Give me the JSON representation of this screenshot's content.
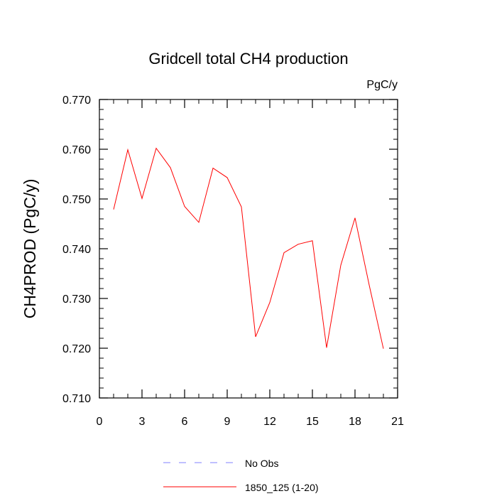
{
  "chart_data": {
    "type": "line",
    "title": "Gridcell total CH4 production",
    "units_label": "PgC/y",
    "xlabel": "",
    "ylabel": "CH4PROD  (PgC/y)",
    "xlim": [
      0,
      21
    ],
    "ylim": [
      0.71,
      0.77
    ],
    "x_ticks": [
      0,
      3,
      6,
      9,
      12,
      15,
      18,
      21
    ],
    "x_tick_labels": [
      "0",
      "3",
      "6",
      "9",
      "12",
      "15",
      "18",
      "21"
    ],
    "y_ticks": [
      0.71,
      0.72,
      0.73,
      0.74,
      0.75,
      0.76,
      0.77
    ],
    "y_tick_labels": [
      "0.710",
      "0.720",
      "0.730",
      "0.740",
      "0.750",
      "0.760",
      "0.770"
    ],
    "grid": false,
    "legend_position": "bottom",
    "series": [
      {
        "name": "1850_125 (1-20)",
        "color": "#ff0000",
        "style": "solid",
        "x": [
          1,
          2,
          3,
          4,
          5,
          6,
          7,
          8,
          9,
          10,
          11,
          12,
          13,
          14,
          15,
          16,
          17,
          18,
          19,
          20
        ],
        "y": [
          0.7479,
          0.7599,
          0.7501,
          0.7602,
          0.7563,
          0.7485,
          0.7453,
          0.7562,
          0.7543,
          0.7484,
          0.7223,
          0.7292,
          0.7392,
          0.7409,
          0.7416,
          0.7201,
          0.7367,
          0.7462,
          0.7327,
          0.7199
        ]
      }
    ],
    "legend": [
      {
        "label": "No Obs",
        "color": "#8080ff",
        "style": "dashed"
      },
      {
        "label": "1850_125 (1-20)",
        "color": "#ff0000",
        "style": "solid"
      }
    ]
  }
}
